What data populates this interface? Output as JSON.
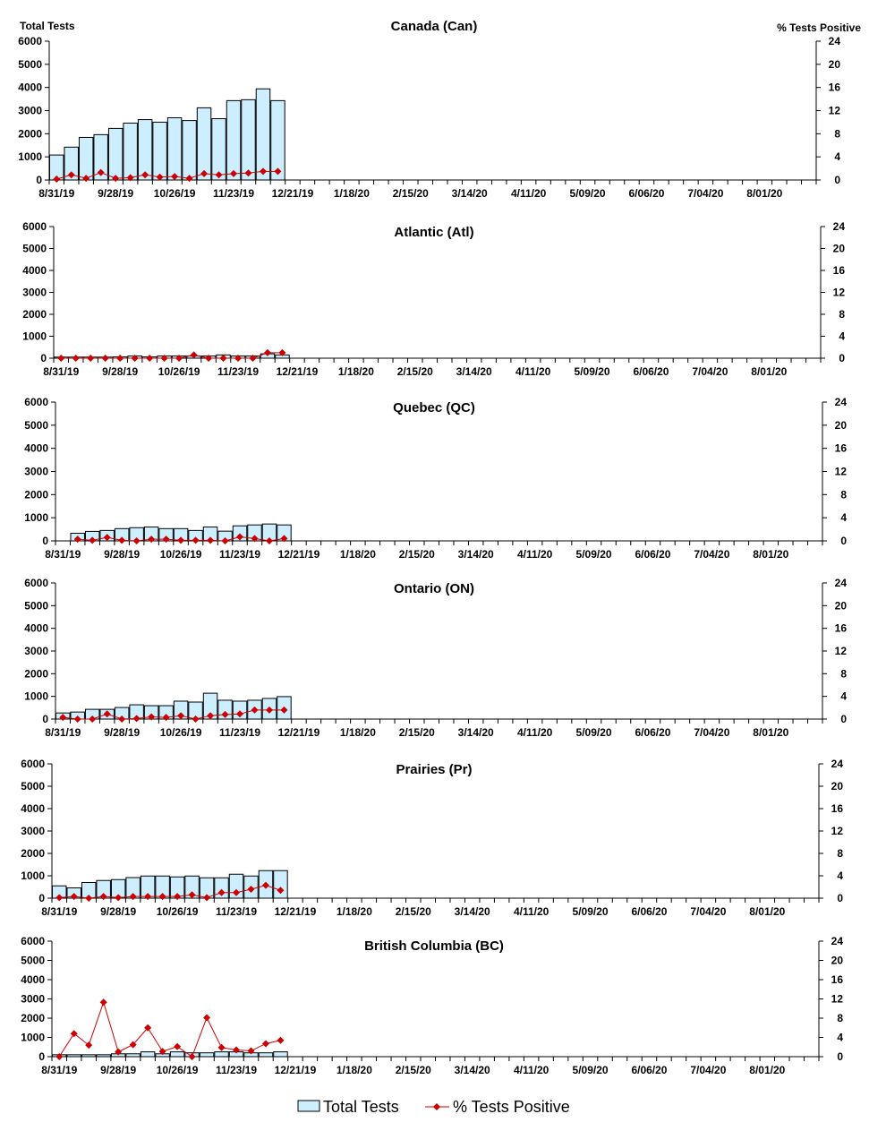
{
  "chart_data": [
    {
      "type": "bar+line",
      "title": "Canada (Can)",
      "ylabel": "Total Tests",
      "y2label": "% Tests Positive",
      "values": [
        1080,
        1420,
        1840,
        1960,
        2230,
        2460,
        2610,
        2500,
        2690,
        2570,
        3120,
        2650,
        3430,
        3470,
        3940,
        3430
      ],
      "pct": [
        0.15,
        0.9,
        0.3,
        1.3,
        0.3,
        0.4,
        0.9,
        0.5,
        0.6,
        0.3,
        1.1,
        0.9,
        1.1,
        1.2,
        1.5,
        1.5
      ]
    },
    {
      "type": "bar+line",
      "title": "Atlantic (Atl)",
      "ylabel": "",
      "y2label": "",
      "values": [
        50,
        50,
        50,
        50,
        60,
        100,
        60,
        100,
        100,
        100,
        100,
        150,
        100,
        100,
        200,
        150
      ],
      "pct": [
        0,
        0,
        0,
        0,
        0,
        0,
        0,
        0,
        0,
        0.6,
        0,
        0,
        0,
        0,
        1.0,
        1.0
      ]
    },
    {
      "type": "bar+line",
      "title": "Quebec (QC)",
      "ylabel": "",
      "y2label": "",
      "values": [
        null,
        330,
        410,
        450,
        530,
        570,
        600,
        530,
        530,
        450,
        600,
        420,
        650,
        690,
        730,
        690
      ],
      "pct": [
        null,
        0.3,
        0.1,
        0.6,
        0.1,
        0,
        0.3,
        0.3,
        0.1,
        0.1,
        0.1,
        0,
        0.7,
        0.4,
        0,
        0.4
      ]
    },
    {
      "type": "bar+line",
      "title": "Ontario (ON)",
      "ylabel": "",
      "y2label": "",
      "values": [
        270,
        310,
        430,
        430,
        510,
        630,
        590,
        590,
        790,
        750,
        1140,
        830,
        790,
        830,
        910,
        990
      ],
      "pct": [
        0.3,
        0,
        0,
        0.9,
        0,
        0.1,
        0.4,
        0.3,
        0.6,
        0,
        0.6,
        0.8,
        0.9,
        1.6,
        1.6,
        1.6
      ]
    },
    {
      "type": "bar+line",
      "title": "Prairies (Pr)",
      "ylabel": "",
      "y2label": "",
      "values": [
        550,
        460,
        700,
        790,
        830,
        920,
        990,
        990,
        950,
        990,
        910,
        910,
        1070,
        990,
        1230,
        1230
      ],
      "pct": [
        0.1,
        0.3,
        0,
        0.3,
        0.1,
        0.3,
        0.3,
        0.3,
        0.3,
        0.6,
        0.1,
        1.0,
        1.0,
        1.6,
        2.3,
        1.4
      ]
    },
    {
      "type": "bar+line",
      "title": "British Columbia (BC)",
      "ylabel": "",
      "y2label": "",
      "values": [
        100,
        100,
        100,
        100,
        150,
        150,
        250,
        150,
        250,
        200,
        200,
        250,
        250,
        200,
        200,
        250
      ],
      "pct": [
        0,
        4.8,
        2.4,
        11.3,
        1.0,
        2.5,
        6.0,
        1.1,
        2.1,
        0,
        8.1,
        1.9,
        1.4,
        1.2,
        2.7,
        3.4
      ]
    }
  ],
  "shared": {
    "ylim": [
      0,
      6000
    ],
    "yticks": [
      "0",
      "1000",
      "2000",
      "3000",
      "4000",
      "5000",
      "6000"
    ],
    "y2lim": [
      0,
      24
    ],
    "y2ticks": [
      "0",
      "4",
      "8",
      "12",
      "16",
      "20",
      "24"
    ],
    "weeks": 52,
    "xticklabels": [
      "8/31/19",
      "9/28/19",
      "10/26/19",
      "11/23/19",
      "12/21/19",
      "1/18/20",
      "2/15/20",
      "3/14/20",
      "4/11/20",
      "5/09/20",
      "6/06/20",
      "7/04/20",
      "8/01/20"
    ],
    "grid": false
  },
  "legend": {
    "placement": "bottom",
    "bars": "Total Tests",
    "line": "% Tests Positive"
  },
  "colors": {
    "bar_fill": "#cceeff",
    "bar_stroke": "#000000",
    "line": "#cc0000"
  }
}
